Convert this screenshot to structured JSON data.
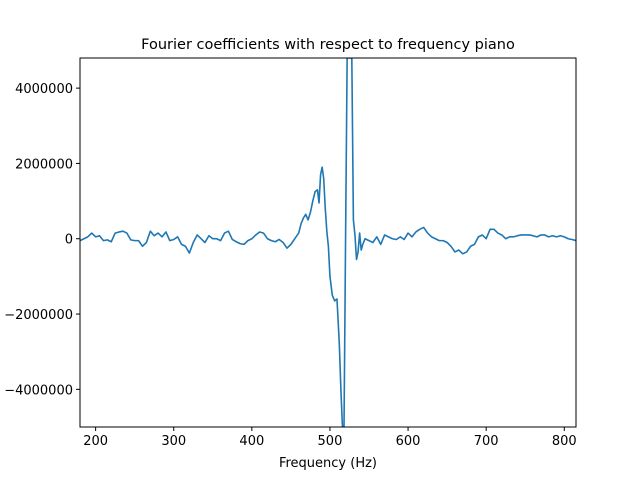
{
  "chart_data": {
    "type": "line",
    "title": "Fourier coefficients with respect to frequency piano",
    "xlabel": "Frequency (Hz)",
    "ylabel": "",
    "xlim": [
      180,
      815
    ],
    "ylim": [
      -5000000,
      4800000
    ],
    "x_ticks": [
      200,
      300,
      400,
      500,
      600,
      700,
      800
    ],
    "x_tick_labels": [
      "200",
      "300",
      "400",
      "500",
      "600",
      "700",
      "800"
    ],
    "y_ticks": [
      -4000000,
      -2000000,
      0,
      2000000,
      4000000
    ],
    "y_tick_labels": [
      "−4000000",
      "−2000000",
      "0",
      "2000000",
      "4000000"
    ],
    "grid": false,
    "legend": "none",
    "series": [
      {
        "color": "#1f77b4",
        "x": [
          180,
          185,
          190,
          195,
          200,
          205,
          210,
          215,
          220,
          225,
          230,
          235,
          240,
          245,
          250,
          255,
          260,
          265,
          270,
          275,
          280,
          285,
          290,
          295,
          300,
          305,
          310,
          315,
          320,
          325,
          330,
          335,
          340,
          345,
          350,
          355,
          360,
          365,
          370,
          375,
          380,
          385,
          390,
          395,
          400,
          405,
          410,
          415,
          420,
          425,
          430,
          435,
          440,
          445,
          450,
          455,
          460,
          463,
          466,
          469,
          472,
          475,
          478,
          481,
          484,
          486,
          488,
          490,
          492,
          494,
          496,
          498,
          500,
          503,
          506,
          509,
          512,
          514,
          516,
          518,
          520,
          522,
          524,
          526,
          528,
          530,
          532,
          534,
          536,
          538,
          540,
          542,
          545,
          550,
          555,
          560,
          565,
          570,
          575,
          580,
          585,
          590,
          595,
          600,
          605,
          610,
          615,
          620,
          625,
          630,
          635,
          640,
          645,
          650,
          655,
          660,
          665,
          670,
          675,
          680,
          685,
          690,
          695,
          700,
          705,
          710,
          715,
          720,
          725,
          730,
          735,
          740,
          745,
          750,
          755,
          760,
          765,
          770,
          775,
          780,
          785,
          790,
          795,
          800,
          805,
          810,
          815
        ],
        "y": [
          -50000,
          0,
          50000,
          150000,
          50000,
          80000,
          -50000,
          -30000,
          -80000,
          150000,
          180000,
          200000,
          150000,
          -30000,
          -50000,
          -50000,
          -200000,
          -100000,
          200000,
          80000,
          150000,
          50000,
          180000,
          -50000,
          -20000,
          50000,
          -150000,
          -200000,
          -380000,
          -100000,
          100000,
          0,
          -100000,
          80000,
          0,
          0,
          -50000,
          150000,
          200000,
          -20000,
          -80000,
          -130000,
          -150000,
          -50000,
          0,
          100000,
          180000,
          150000,
          0,
          -50000,
          -80000,
          -20000,
          -100000,
          -250000,
          -150000,
          0,
          150000,
          400000,
          550000,
          650000,
          500000,
          700000,
          1000000,
          1250000,
          1300000,
          950000,
          1700000,
          1900000,
          1600000,
          800000,
          200000,
          -200000,
          -1000000,
          -1500000,
          -1650000,
          -1600000,
          -2800000,
          -4000000,
          -5000000,
          -5000000,
          0,
          4800000,
          4800000,
          4800000,
          4800000,
          500000,
          100000,
          -550000,
          -350000,
          150000,
          -300000,
          -150000,
          0,
          -50000,
          -100000,
          50000,
          -150000,
          100000,
          50000,
          0,
          -20000,
          50000,
          -20000,
          150000,
          50000,
          180000,
          250000,
          300000,
          150000,
          50000,
          0,
          -50000,
          -50000,
          -100000,
          -200000,
          -350000,
          -300000,
          -400000,
          -350000,
          -200000,
          -150000,
          50000,
          100000,
          0,
          250000,
          250000,
          150000,
          100000,
          0,
          50000,
          50000,
          80000,
          100000,
          100000,
          100000,
          80000,
          50000,
          100000,
          100000,
          50000,
          80000,
          50000,
          80000,
          50000,
          0,
          -20000,
          -50000
        ]
      }
    ]
  }
}
